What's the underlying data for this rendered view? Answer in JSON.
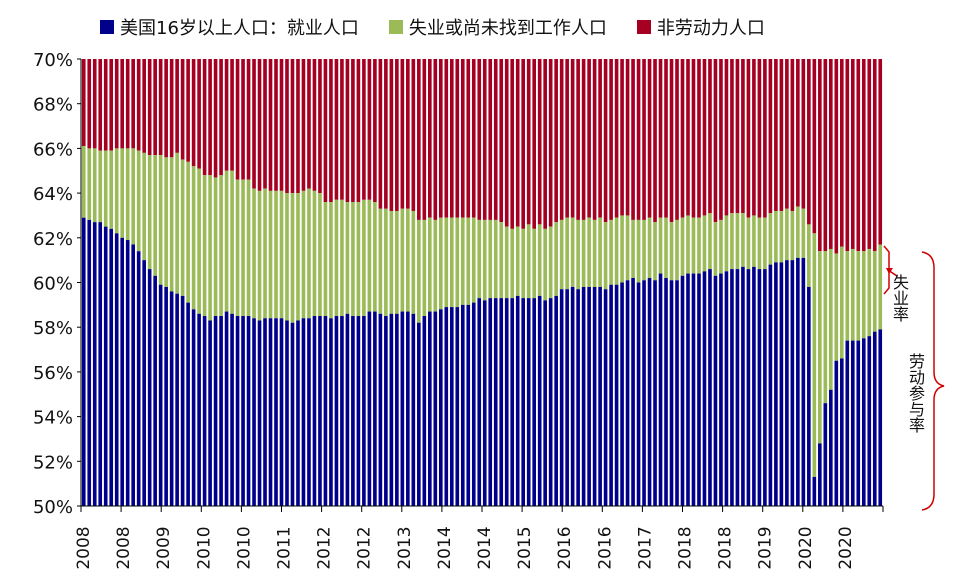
{
  "chart_data": {
    "type": "bar",
    "stacked": true,
    "legend_position": "top",
    "yticks": [
      "50%",
      "52%",
      "54%",
      "56%",
      "58%",
      "60%",
      "62%",
      "64%",
      "66%",
      "68%",
      "70%"
    ],
    "ylim": [
      50,
      70
    ],
    "xtick_labels": [
      "2008",
      "2008",
      "2009",
      "2010",
      "2010",
      "2011",
      "2012",
      "2012",
      "2013",
      "2014",
      "2014",
      "2015",
      "2016",
      "2016",
      "2017",
      "2018",
      "2018",
      "2019",
      "2020",
      "2020"
    ],
    "start": "2008-01",
    "series": [
      {
        "name": "美国16岁以上人口：就业人口",
        "color": "#00008B",
        "values": [
          62.9,
          62.8,
          62.7,
          62.7,
          62.5,
          62.4,
          62.2,
          62.0,
          61.9,
          61.7,
          61.4,
          61.0,
          60.6,
          60.3,
          59.9,
          59.8,
          59.6,
          59.5,
          59.4,
          59.1,
          58.8,
          58.6,
          58.5,
          58.3,
          58.5,
          58.5,
          58.7,
          58.6,
          58.5,
          58.5,
          58.5,
          58.4,
          58.3,
          58.4,
          58.4,
          58.4,
          58.4,
          58.3,
          58.2,
          58.3,
          58.4,
          58.4,
          58.5,
          58.5,
          58.5,
          58.4,
          58.5,
          58.5,
          58.6,
          58.5,
          58.5,
          58.5,
          58.7,
          58.7,
          58.6,
          58.5,
          58.6,
          58.6,
          58.7,
          58.7,
          58.6,
          58.2,
          58.5,
          58.7,
          58.7,
          58.8,
          58.9,
          58.9,
          58.9,
          59.0,
          59.0,
          59.1,
          59.3,
          59.2,
          59.3,
          59.3,
          59.3,
          59.3,
          59.3,
          59.4,
          59.3,
          59.3,
          59.3,
          59.4,
          59.2,
          59.3,
          59.4,
          59.7,
          59.7,
          59.8,
          59.7,
          59.8,
          59.8,
          59.8,
          59.8,
          59.7,
          59.9,
          59.9,
          60.0,
          60.1,
          60.2,
          60.0,
          60.1,
          60.2,
          60.1,
          60.4,
          60.2,
          60.1,
          60.1,
          60.3,
          60.4,
          60.4,
          60.4,
          60.5,
          60.6,
          60.3,
          60.4,
          60.5,
          60.6,
          60.6,
          60.7,
          60.6,
          60.7,
          60.6,
          60.6,
          60.8,
          60.9,
          60.9,
          61.0,
          61.0,
          61.1,
          61.1,
          59.8,
          51.3,
          52.8,
          54.6,
          55.2,
          56.5,
          56.6,
          57.4,
          57.4,
          57.4,
          57.5,
          57.6,
          57.8,
          57.9
        ]
      },
      {
        "name": "失业或尚未找到工作人口",
        "color": "#9BBB59",
        "values": [
          3.2,
          3.2,
          3.3,
          3.2,
          3.4,
          3.5,
          3.8,
          4.0,
          4.1,
          4.3,
          4.5,
          4.8,
          5.1,
          5.4,
          5.8,
          5.8,
          6.0,
          6.3,
          6.1,
          6.3,
          6.4,
          6.5,
          6.3,
          6.5,
          6.2,
          6.3,
          6.3,
          6.4,
          6.1,
          6.1,
          6.1,
          5.8,
          5.8,
          5.8,
          5.7,
          5.7,
          5.7,
          5.7,
          5.8,
          5.7,
          5.7,
          5.8,
          5.6,
          5.5,
          5.1,
          5.2,
          5.2,
          5.2,
          5.0,
          5.1,
          5.1,
          5.2,
          5.0,
          4.9,
          4.7,
          4.8,
          4.6,
          4.6,
          4.6,
          4.6,
          4.6,
          4.6,
          4.3,
          4.2,
          4.1,
          4.1,
          4.0,
          4.0,
          4.0,
          3.9,
          3.9,
          3.8,
          3.5,
          3.6,
          3.5,
          3.5,
          3.4,
          3.2,
          3.1,
          3.1,
          3.1,
          3.3,
          3.1,
          3.2,
          3.2,
          3.2,
          3.3,
          3.1,
          3.2,
          3.1,
          3.1,
          3.0,
          3.1,
          3.0,
          3.1,
          3.0,
          2.9,
          3.0,
          3.0,
          2.9,
          2.6,
          2.8,
          2.7,
          2.7,
          2.6,
          2.5,
          2.7,
          2.6,
          2.7,
          2.6,
          2.6,
          2.5,
          2.5,
          2.5,
          2.5,
          2.4,
          2.4,
          2.5,
          2.5,
          2.5,
          2.4,
          2.3,
          2.3,
          2.3,
          2.3,
          2.3,
          2.3,
          2.3,
          2.3,
          2.2,
          2.3,
          2.2,
          2.8,
          10.9,
          8.6,
          6.8,
          6.3,
          4.8,
          5.0,
          4.0,
          4.1,
          4.0,
          3.9,
          3.9,
          3.6,
          3.8
        ]
      },
      {
        "name": "非劳动力人口",
        "color": "#A50021"
      }
    ]
  },
  "annotations": {
    "unemployment_rate": "失业率",
    "participation_rate": "劳动参与率"
  }
}
